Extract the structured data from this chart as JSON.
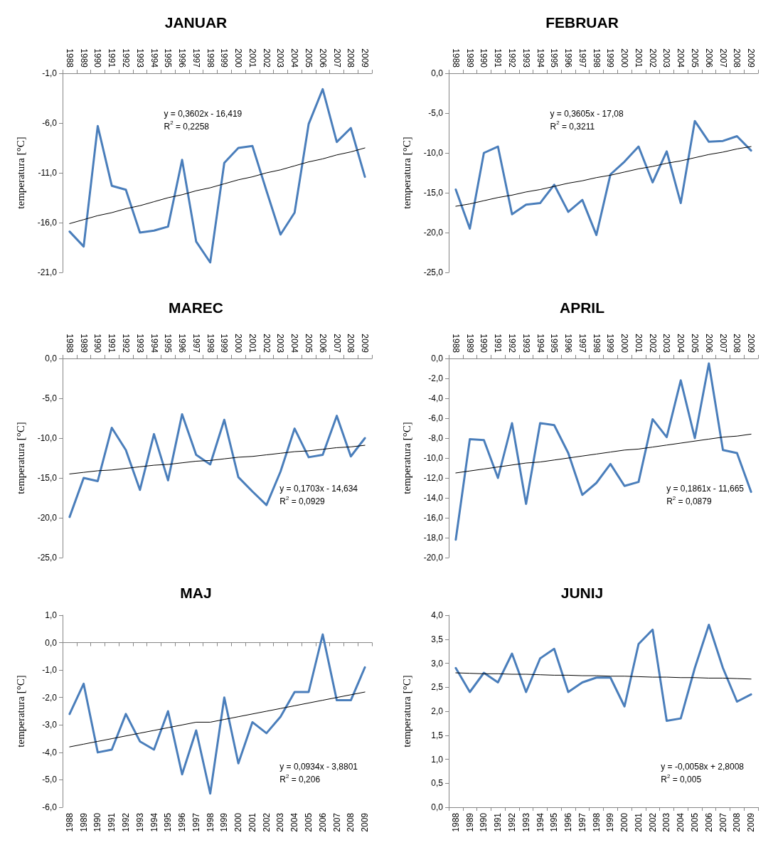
{
  "chart_data": [
    {
      "type": "line",
      "title": "JANUAR",
      "ylabel": "temperatura [°C]",
      "categories": [
        "1988",
        "1989",
        "1990",
        "1991",
        "1992",
        "1993",
        "1994",
        "1995",
        "1996",
        "1997",
        "1998",
        "1999",
        "2000",
        "2001",
        "2002",
        "2003",
        "2004",
        "2005",
        "2006",
        "2007",
        "2008",
        "2009"
      ],
      "series": [
        {
          "color": "#4a7ebb",
          "values": [
            -16.9,
            -18.4,
            -6.3,
            -12.3,
            -12.7,
            -17.0,
            -16.8,
            -16.4,
            -9.7,
            -17.9,
            -20.0,
            -10.0,
            -8.5,
            -8.3,
            -12.8,
            -17.2,
            -15.0,
            -6.1,
            -2.6,
            -7.9,
            -6.5,
            -11.4
          ]
        },
        {
          "type": "line",
          "color": "#000000",
          "values": [
            -16.1,
            -15.7,
            -15.3,
            -15.0,
            -14.6,
            -14.3,
            -13.9,
            -13.5,
            -13.2,
            -12.8,
            -12.5,
            -12.1,
            -11.7,
            -11.4,
            -11.0,
            -10.7,
            -10.3,
            -9.9,
            -9.6,
            -9.2,
            -8.9,
            -8.5
          ]
        }
      ],
      "ylim": [
        -21,
        -1
      ],
      "yticks": [
        {
          "value": -21,
          "label": "-21,0"
        },
        {
          "value": -16,
          "label": "-16,0"
        },
        {
          "value": -11,
          "label": "-11,0"
        },
        {
          "value": -6,
          "label": "-6,0"
        },
        {
          "value": -1,
          "label": "-1,0"
        }
      ],
      "annotations": [
        "y = 0,3602x - 16,419",
        "R$^{2}$ = 0,2258"
      ],
      "marker": "none",
      "line_style": "solid"
    },
    {
      "type": "line",
      "title": "FEBRUAR",
      "ylabel": "temperatura [°C]",
      "categories": [
        "1988",
        "1989",
        "1990",
        "1991",
        "1992",
        "1993",
        "1994",
        "1995",
        "1996",
        "1997",
        "1998",
        "1999",
        "2000",
        "2001",
        "2002",
        "2003",
        "2004",
        "2005",
        "2006",
        "2007",
        "2008",
        "2009"
      ],
      "series": [
        {
          "color": "#4a7ebb",
          "values": [
            -14.6,
            -19.5,
            -10.0,
            -9.2,
            -17.7,
            -16.5,
            -16.3,
            -14.0,
            -17.4,
            -15.9,
            -20.3,
            -12.7,
            -11.1,
            -9.2,
            -13.7,
            -9.8,
            -16.3,
            -6.0,
            -8.6,
            -8.5,
            -7.9,
            -9.7
          ]
        },
        {
          "type": "line",
          "color": "#000000",
          "values": [
            -16.7,
            -16.4,
            -16.0,
            -15.6,
            -15.3,
            -14.9,
            -14.6,
            -14.2,
            -13.8,
            -13.5,
            -13.1,
            -12.8,
            -12.4,
            -12.0,
            -11.7,
            -11.3,
            -11.0,
            -10.6,
            -10.2,
            -9.9,
            -9.5,
            -9.2
          ]
        }
      ],
      "ylim": [
        -25,
        0
      ],
      "yticks": [
        {
          "value": -25,
          "label": "-25,0"
        },
        {
          "value": -20,
          "label": "-20,0"
        },
        {
          "value": -15,
          "label": "-15,0"
        },
        {
          "value": -10,
          "label": "-10,0"
        },
        {
          "value": -5,
          "label": "-5,0"
        },
        {
          "value": 0,
          "label": "0,0"
        }
      ],
      "annotations": [
        "y = 0,3605x - 17,08",
        "R$^{2}$ = 0,3211"
      ],
      "marker": "none",
      "line_style": "solid"
    },
    {
      "type": "line",
      "title": "MAREC",
      "ylabel": "temperatura [°C]",
      "categories": [
        "1988",
        "1989",
        "1990",
        "1991",
        "1992",
        "1993",
        "1994",
        "1995",
        "1996",
        "1997",
        "1998",
        "1999",
        "2000",
        "2001",
        "2002",
        "2003",
        "2004",
        "2005",
        "2006",
        "2007",
        "2008",
        "2009"
      ],
      "series": [
        {
          "color": "#4a7ebb",
          "values": [
            -19.9,
            -15.0,
            -15.4,
            -8.7,
            -11.5,
            -16.5,
            -9.5,
            -15.3,
            -7.0,
            -12.1,
            -13.3,
            -7.7,
            -14.9,
            -16.7,
            -18.4,
            -14.2,
            -8.8,
            -12.4,
            -12.1,
            -7.2,
            -12.3,
            -10.0
          ]
        },
        {
          "type": "line",
          "color": "#000000",
          "values": [
            -14.5,
            -14.3,
            -14.1,
            -14.0,
            -13.8,
            -13.6,
            -13.4,
            -13.3,
            -13.1,
            -12.9,
            -12.8,
            -12.6,
            -12.4,
            -12.3,
            -12.1,
            -11.9,
            -11.7,
            -11.6,
            -11.4,
            -11.2,
            -11.1,
            -10.9
          ]
        }
      ],
      "ylim": [
        -25,
        0
      ],
      "yticks": [
        {
          "value": -25,
          "label": "-25,0"
        },
        {
          "value": -20,
          "label": "-20,0"
        },
        {
          "value": -15,
          "label": "-15,0"
        },
        {
          "value": -10,
          "label": "-10,0"
        },
        {
          "value": -5,
          "label": "-5,0"
        },
        {
          "value": 0,
          "label": "0,0"
        }
      ],
      "annotations": [
        "y = 0,1703x - 14,634",
        "R$^{2}$ = 0,0929"
      ],
      "marker": "none",
      "line_style": "solid"
    },
    {
      "type": "line",
      "title": "APRIL",
      "ylabel": "temperatura [°C]",
      "categories": [
        "1988",
        "1989",
        "1990",
        "1991",
        "1992",
        "1993",
        "1994",
        "1995",
        "1996",
        "1997",
        "1998",
        "1999",
        "2000",
        "2001",
        "2002",
        "2003",
        "2004",
        "2005",
        "2006",
        "2007",
        "2008",
        "2009"
      ],
      "series": [
        {
          "color": "#4a7ebb",
          "values": [
            -18.2,
            -8.1,
            -8.2,
            -12.0,
            -6.5,
            -14.6,
            -6.5,
            -6.7,
            -9.5,
            -13.7,
            -12.5,
            -10.6,
            -12.8,
            -12.4,
            -6.1,
            -7.9,
            -2.2,
            -8.0,
            -0.5,
            -9.2,
            -9.5,
            -13.4
          ]
        },
        {
          "type": "line",
          "color": "#000000",
          "values": [
            -11.5,
            -11.3,
            -11.1,
            -10.9,
            -10.7,
            -10.5,
            -10.4,
            -10.2,
            -10.0,
            -9.8,
            -9.6,
            -9.4,
            -9.2,
            -9.1,
            -8.9,
            -8.7,
            -8.5,
            -8.3,
            -8.1,
            -7.9,
            -7.8,
            -7.6
          ]
        }
      ],
      "ylim": [
        -20,
        0
      ],
      "yticks": [
        {
          "value": -20,
          "label": "-20,0"
        },
        {
          "value": -18,
          "label": "-18,0"
        },
        {
          "value": -16,
          "label": "-16,0"
        },
        {
          "value": -14,
          "label": "-14,0"
        },
        {
          "value": -12,
          "label": "-12,0"
        },
        {
          "value": -10,
          "label": "-10,0"
        },
        {
          "value": -8,
          "label": "-8,0"
        },
        {
          "value": -6,
          "label": "-6,0"
        },
        {
          "value": -4,
          "label": "-4,0"
        },
        {
          "value": -2,
          "label": "-2,0"
        },
        {
          "value": 0,
          "label": "0,0"
        }
      ],
      "annotations": [
        "y = 0,1861x - 11,665",
        "R$^{2}$ = 0,0879"
      ],
      "marker": "none",
      "line_style": "solid"
    },
    {
      "type": "line",
      "title": "MAJ",
      "ylabel": "temperatura [°C]",
      "categories": [
        "1988",
        "1989",
        "1990",
        "1991",
        "1992",
        "1993",
        "1994",
        "1995",
        "1996",
        "1997",
        "1998",
        "1999",
        "2000",
        "2001",
        "2002",
        "2003",
        "2004",
        "2005",
        "2006",
        "2007",
        "2008",
        "2009"
      ],
      "series": [
        {
          "color": "#4a7ebb",
          "values": [
            -2.6,
            -1.5,
            -4.0,
            -3.9,
            -2.6,
            -3.6,
            -3.9,
            -2.5,
            -4.8,
            -3.2,
            -5.5,
            -2.0,
            -4.4,
            -2.9,
            -3.3,
            -2.7,
            -1.8,
            -1.8,
            0.3,
            -2.1,
            -2.1,
            -0.9
          ]
        },
        {
          "type": "line",
          "color": "#000000",
          "values": [
            -3.8,
            -3.7,
            -3.6,
            -3.5,
            -3.4,
            -3.3,
            -3.2,
            -3.1,
            -3.0,
            -2.9,
            -2.9,
            -2.8,
            -2.7,
            -2.6,
            -2.5,
            -2.4,
            -2.3,
            -2.2,
            -2.1,
            -2.0,
            -1.9,
            -1.8
          ]
        }
      ],
      "ylim": [
        -6,
        1
      ],
      "yticks": [
        {
          "value": -6,
          "label": "-6,0"
        },
        {
          "value": -5,
          "label": "-5,0"
        },
        {
          "value": -4,
          "label": "-4,0"
        },
        {
          "value": -3,
          "label": "-3,0"
        },
        {
          "value": -2,
          "label": "-2,0"
        },
        {
          "value": -1,
          "label": "-1,0"
        },
        {
          "value": 0,
          "label": "0,0"
        },
        {
          "value": 1,
          "label": "1,0"
        }
      ],
      "annotations": [
        "y = 0,0934x - 3,8801",
        "R$^{2}$ = 0,206"
      ],
      "marker": "none",
      "line_style": "solid"
    },
    {
      "type": "line",
      "title": "JUNIJ",
      "ylabel": "temperatura [°C]",
      "categories": [
        "1988",
        "1989",
        "1990",
        "1991",
        "1992",
        "1993",
        "1994",
        "1995",
        "1996",
        "1997",
        "1998",
        "1999",
        "2000",
        "2001",
        "2002",
        "2003",
        "2004",
        "2005",
        "2006",
        "2007",
        "2008",
        "2009"
      ],
      "series": [
        {
          "color": "#4a7ebb",
          "values": [
            2.9,
            2.4,
            2.8,
            2.6,
            3.2,
            2.4,
            3.1,
            3.3,
            2.4,
            2.6,
            2.7,
            2.7,
            2.1,
            3.4,
            3.7,
            1.8,
            1.85,
            2.9,
            3.8,
            2.9,
            2.2,
            2.35
          ]
        },
        {
          "type": "line",
          "color": "#000000",
          "values": [
            2.8,
            2.79,
            2.78,
            2.78,
            2.77,
            2.77,
            2.76,
            2.75,
            2.75,
            2.74,
            2.74,
            2.73,
            2.73,
            2.72,
            2.71,
            2.71,
            2.7,
            2.7,
            2.69,
            2.69,
            2.68,
            2.67
          ]
        }
      ],
      "ylim": [
        0,
        4
      ],
      "yticks": [
        {
          "value": 0,
          "label": "0,0"
        },
        {
          "value": 0.5,
          "label": "0,5"
        },
        {
          "value": 1,
          "label": "1,0"
        },
        {
          "value": 1.5,
          "label": "1,5"
        },
        {
          "value": 2,
          "label": "2,0"
        },
        {
          "value": 2.5,
          "label": "2,5"
        },
        {
          "value": 3,
          "label": "3,0"
        },
        {
          "value": 3.5,
          "label": "3,5"
        },
        {
          "value": 4,
          "label": "4,0"
        }
      ],
      "annotations": [
        "y = -0,0058x + 2,8008",
        "R$^{2}$ = 0,005"
      ],
      "marker": "none",
      "line_style": "solid"
    }
  ]
}
